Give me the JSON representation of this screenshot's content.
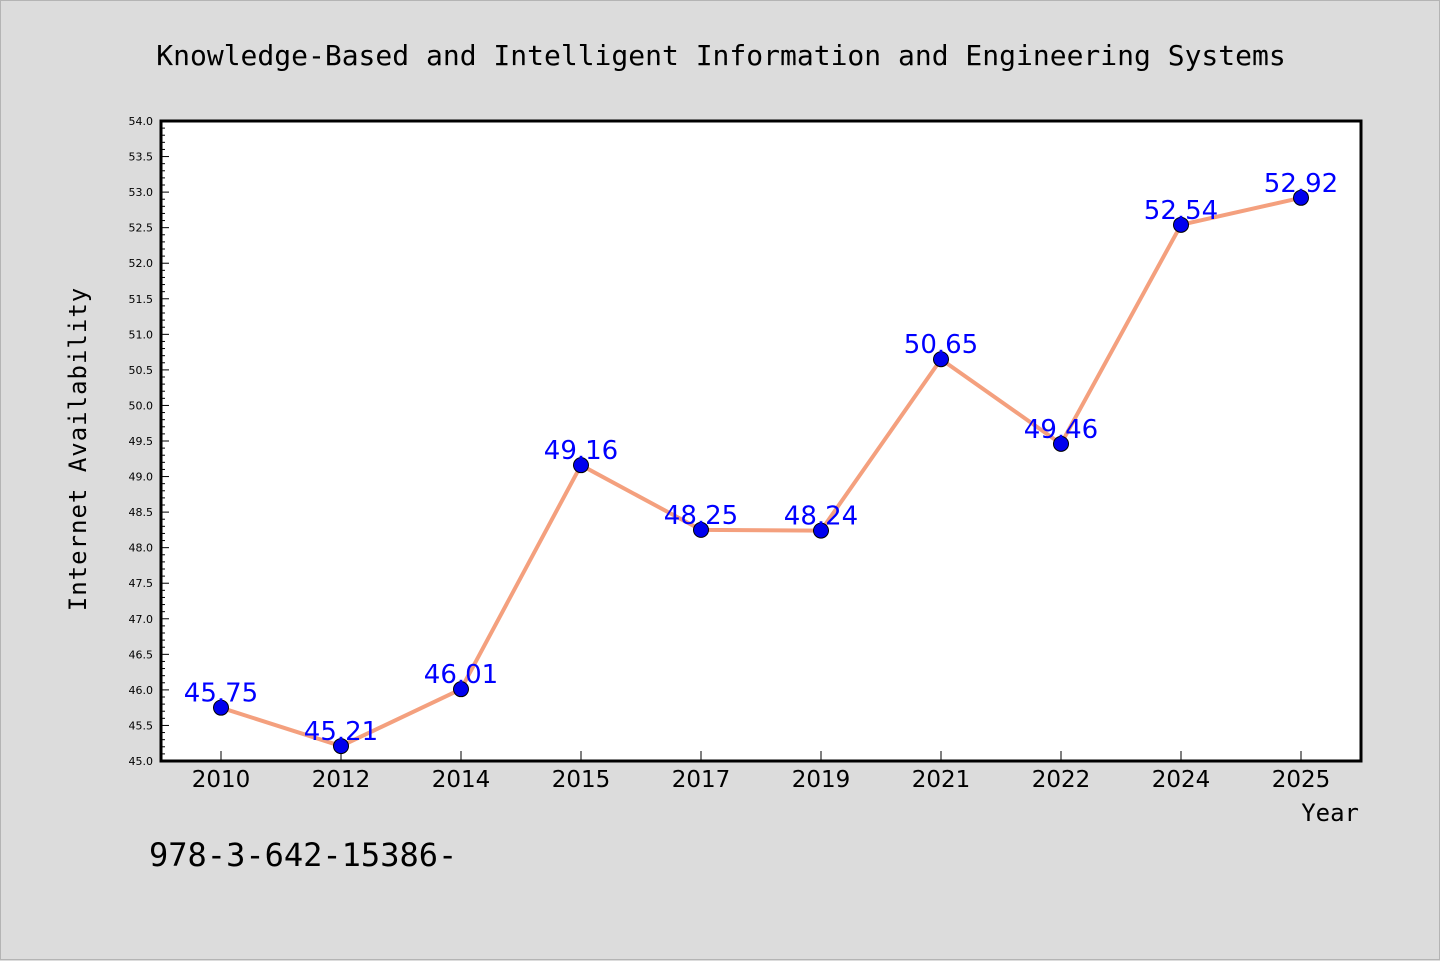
{
  "chart_data": {
    "type": "line",
    "title": "Knowledge-Based and Intelligent Information and Engineering Systems",
    "xlabel": "Year",
    "ylabel": "Internet Availability",
    "categories": [
      "2010",
      "2012",
      "2014",
      "2015",
      "2017",
      "2019",
      "2021",
      "2022",
      "2024",
      "2025"
    ],
    "values": [
      45.75,
      45.21,
      46.01,
      49.16,
      48.25,
      48.24,
      50.65,
      49.46,
      52.54,
      52.92
    ],
    "data_labels": [
      "45.75",
      "45.21",
      "46.01",
      "49.16",
      "48.25",
      "48.24",
      "50.65",
      "49.46",
      "52.54",
      "52.92"
    ],
    "ylim": [
      45.0,
      54.0
    ],
    "yticks": [
      "45.0",
      "45.5",
      "46.0",
      "46.5",
      "47.0",
      "47.5",
      "48.0",
      "48.5",
      "49.0",
      "49.5",
      "50.0",
      "50.5",
      "51.0",
      "51.5",
      "52.0",
      "52.5",
      "53.0",
      "53.5",
      "54.0"
    ],
    "grid": false,
    "line_color": "#f4a07e",
    "marker_color": "#0000ee",
    "label_color": "#0000ff"
  },
  "footer_text": "978-3-642-15386-"
}
